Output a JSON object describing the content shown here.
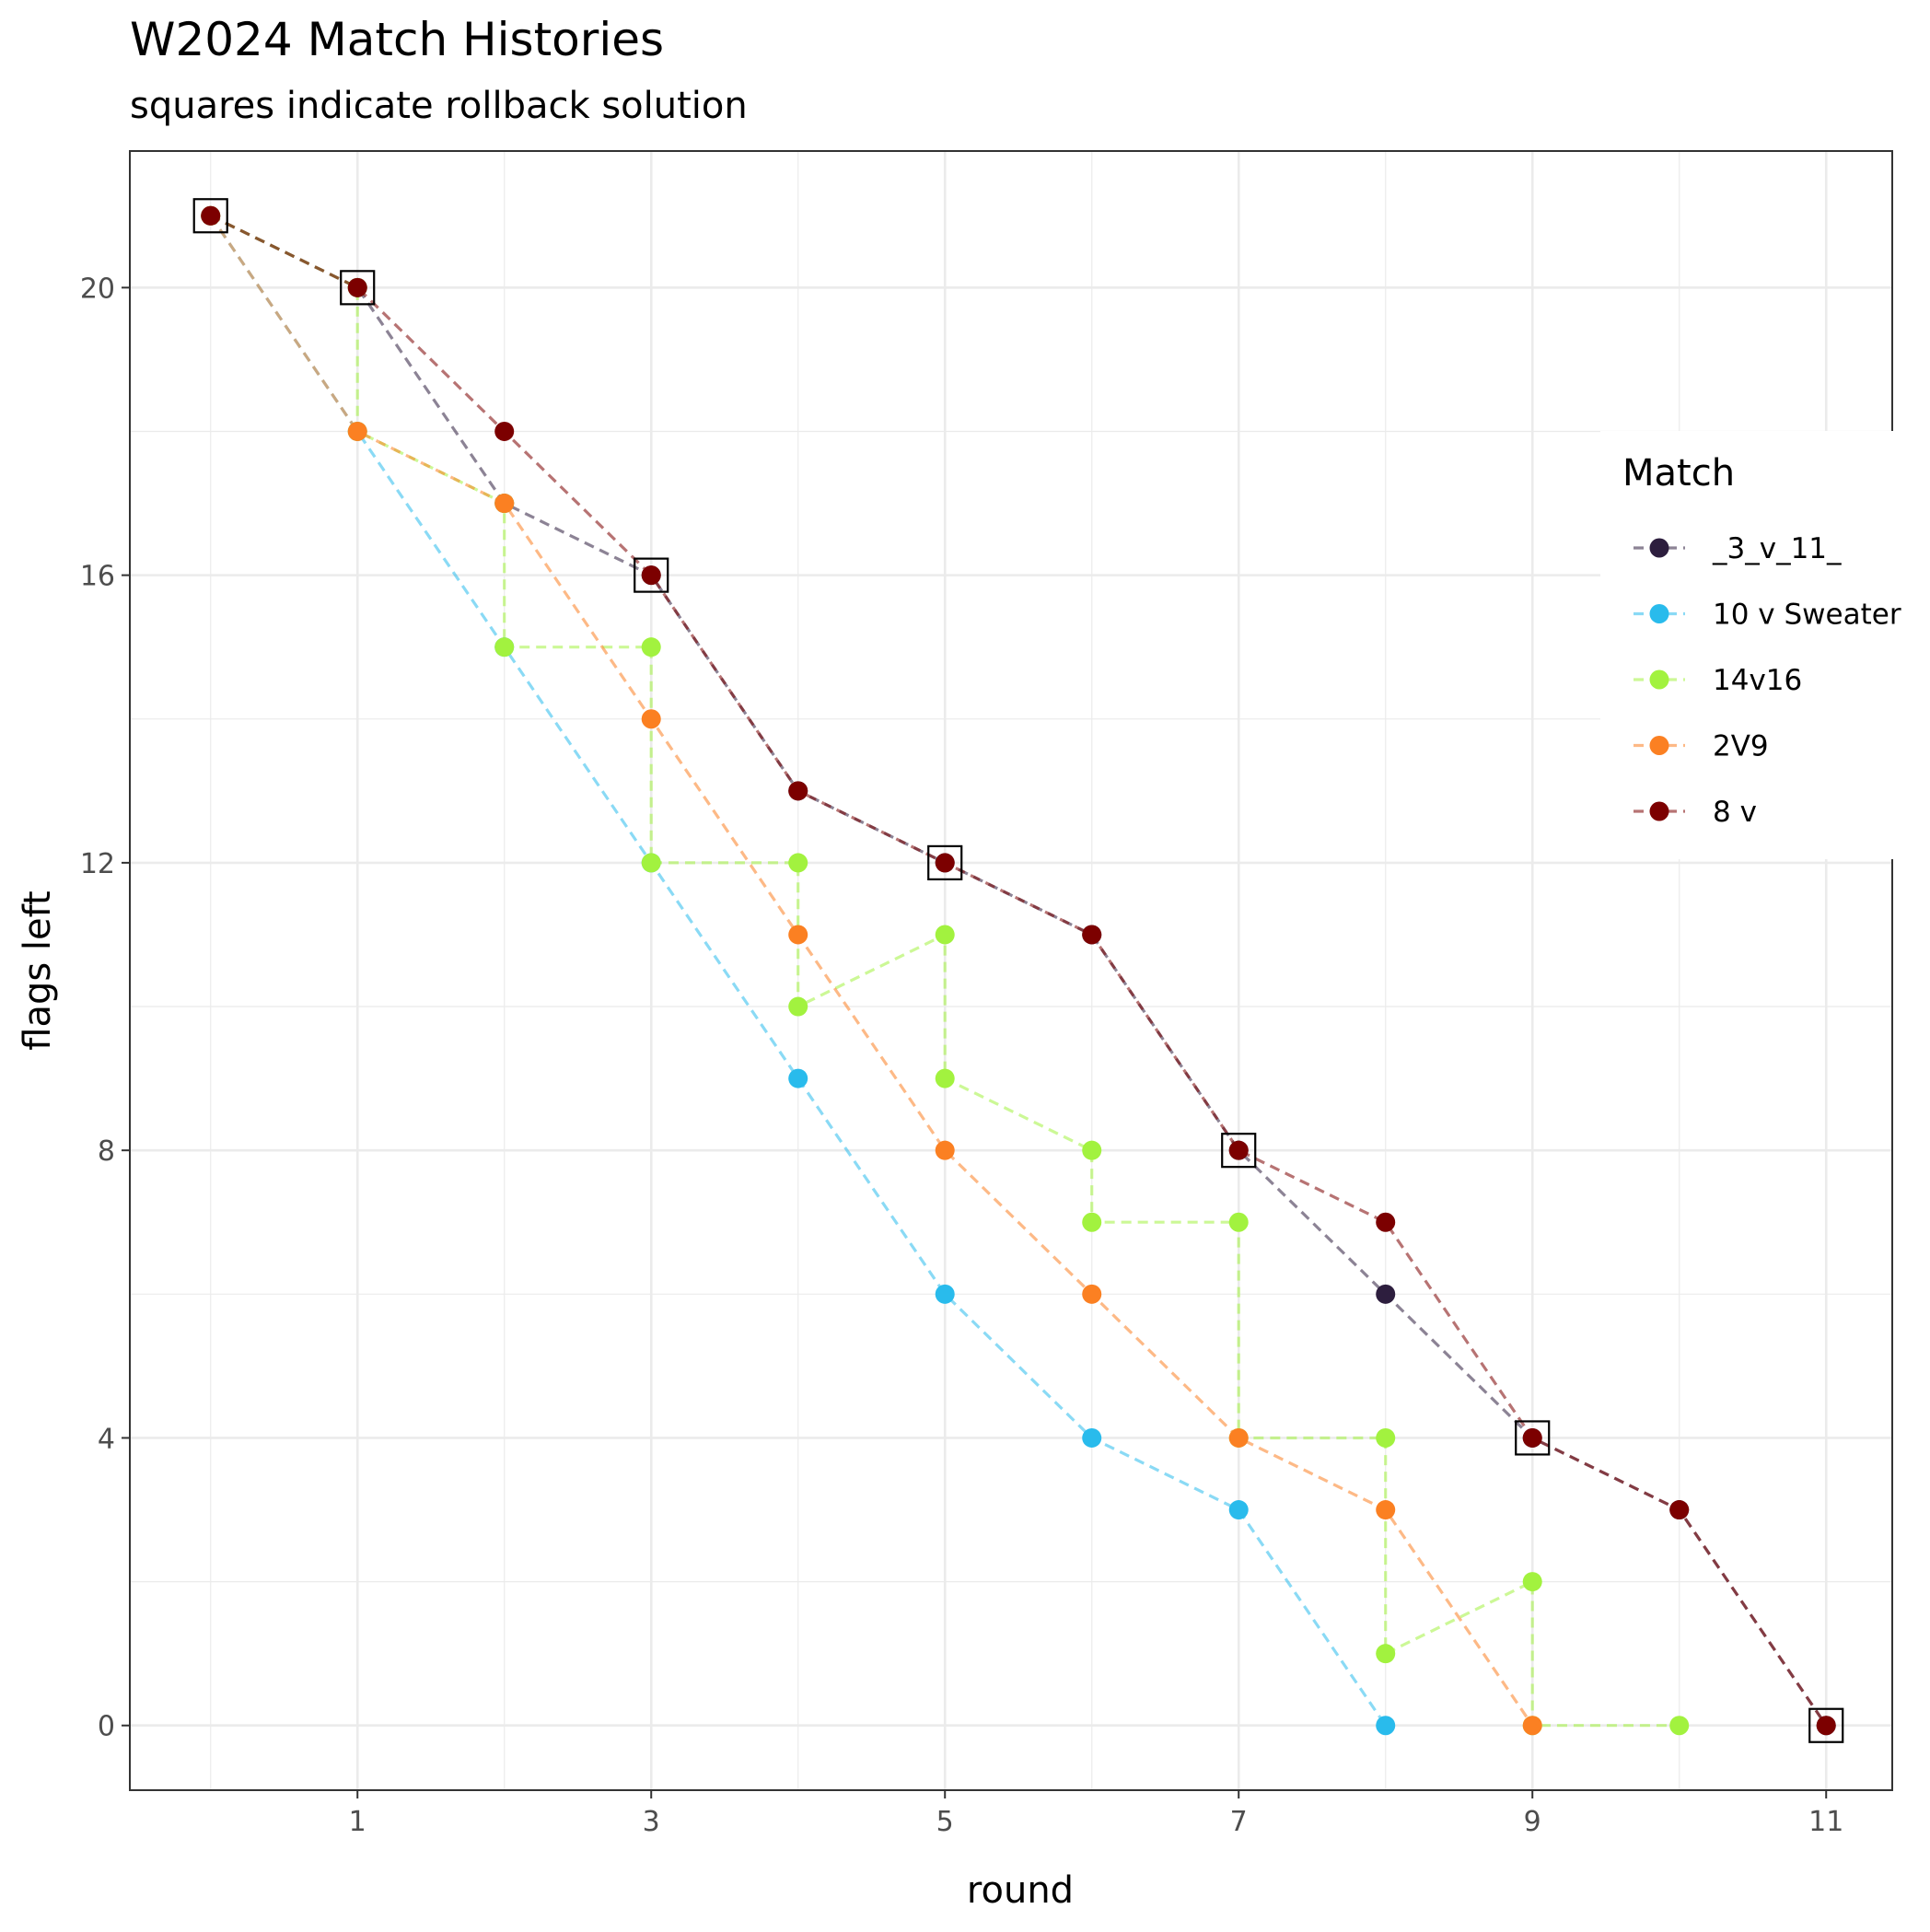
{
  "chart_data": {
    "type": "line",
    "title": "W2024 Match Histories",
    "subtitle": "squares indicate rollback solution",
    "xlabel": "round",
    "ylabel": "flags left",
    "xlim": [
      -0.55,
      11.45
    ],
    "ylim": [
      -0.9,
      21.9
    ],
    "xticks": [
      1,
      3,
      5,
      7,
      9,
      11
    ],
    "yticks": [
      0,
      4,
      8,
      12,
      16,
      20
    ],
    "grid": true,
    "legend": {
      "title": "Match",
      "position": "right"
    },
    "series": [
      {
        "name": "_3_v_11_",
        "color": "#2d1e3e",
        "points": [
          [
            0,
            21
          ],
          [
            1,
            20
          ],
          [
            2,
            17
          ],
          [
            3,
            16
          ],
          [
            4,
            13
          ],
          [
            5,
            12
          ],
          [
            6,
            11
          ],
          [
            7,
            8
          ],
          [
            8,
            6
          ],
          [
            9,
            4
          ],
          [
            10,
            3
          ],
          [
            11,
            0
          ]
        ]
      },
      {
        "name": "10 v Sweater",
        "color": "#29bbec",
        "points": [
          [
            0,
            21
          ],
          [
            1,
            18
          ],
          [
            2,
            15
          ],
          [
            3,
            12
          ],
          [
            4,
            9
          ],
          [
            5,
            6
          ],
          [
            6,
            4
          ],
          [
            7,
            3
          ],
          [
            8,
            0
          ]
        ]
      },
      {
        "name": "14v16",
        "color": "#a2f23f",
        "points": [
          [
            0,
            21
          ],
          [
            1,
            20
          ],
          [
            1,
            18
          ],
          [
            2,
            17
          ],
          [
            2,
            15
          ],
          [
            3,
            15
          ],
          [
            3,
            12
          ],
          [
            4,
            12
          ],
          [
            4,
            10
          ],
          [
            5,
            11
          ],
          [
            5,
            9
          ],
          [
            6,
            8
          ],
          [
            6,
            7
          ],
          [
            7,
            7
          ],
          [
            7,
            4
          ],
          [
            8,
            4
          ],
          [
            8,
            1
          ],
          [
            9,
            2
          ],
          [
            9,
            0
          ],
          [
            10,
            0
          ]
        ]
      },
      {
        "name": "2V9",
        "color": "#fb8022",
        "points": [
          [
            0,
            21
          ],
          [
            1,
            18
          ],
          [
            2,
            17
          ],
          [
            3,
            14
          ],
          [
            4,
            11
          ],
          [
            5,
            8
          ],
          [
            6,
            6
          ],
          [
            7,
            4
          ],
          [
            8,
            3
          ],
          [
            9,
            0
          ]
        ]
      },
      {
        "name": "8 v",
        "color": "#7c0000",
        "points": [
          [
            0,
            21
          ],
          [
            1,
            20
          ],
          [
            2,
            18
          ],
          [
            3,
            16
          ],
          [
            4,
            13
          ],
          [
            5,
            12
          ],
          [
            6,
            11
          ],
          [
            7,
            8
          ],
          [
            8,
            7
          ],
          [
            9,
            4
          ],
          [
            10,
            3
          ],
          [
            11,
            0
          ]
        ]
      }
    ],
    "rollback_solution": [
      [
        0,
        21
      ],
      [
        1,
        20
      ],
      [
        3,
        16
      ],
      [
        5,
        12
      ],
      [
        7,
        8
      ],
      [
        9,
        4
      ],
      [
        11,
        0
      ]
    ]
  }
}
